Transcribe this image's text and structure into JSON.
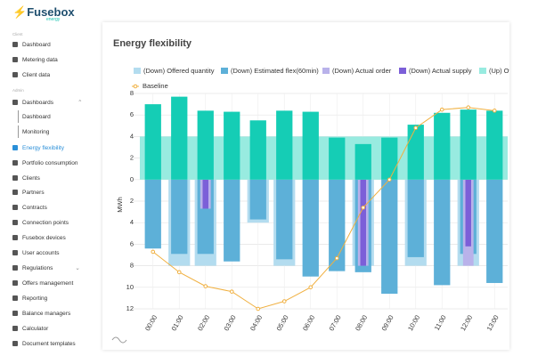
{
  "logo": {
    "name": "Fusebox",
    "sub": "energy"
  },
  "sidebar": {
    "section_labels": [
      "Client",
      "Admin"
    ],
    "items": [
      "Dashboard",
      "Metering data",
      "Client data",
      "Dashboards",
      "Dashboard",
      "Monitoring",
      "Energy flexibility",
      "Portfolio consumption",
      "Clients",
      "Partners",
      "Contracts",
      "Connection points",
      "Fusebox devices",
      "User accounts",
      "Regulations",
      "Offers management",
      "Reporting",
      "Balance managers",
      "Calculator",
      "Document templates"
    ]
  },
  "page": {
    "title": "Energy flexibility"
  },
  "chart_data": {
    "type": "bar",
    "categories": [
      "00:00",
      "01:00",
      "02:00",
      "03:00",
      "04:00",
      "05:00",
      "06:00",
      "07:00",
      "08:00",
      "09:00",
      "10:00",
      "11:00",
      "12:00",
      "13:00"
    ],
    "y_label": "MWh",
    "ylim": [
      -12,
      8
    ],
    "yticks": [
      8,
      6,
      4,
      2,
      0,
      {
        "value": -2,
        "label": "2"
      },
      {
        "value": -4,
        "label": "4"
      },
      {
        "value": -6,
        "label": "6"
      },
      {
        "value": -8,
        "label": "8"
      },
      {
        "value": -10,
        "label": "10"
      },
      {
        "value": -12,
        "label": "12"
      }
    ],
    "grid": true,
    "series": [
      {
        "name": "(Down) Offered quantity",
        "type": "bar",
        "color": "#b3dcef",
        "values": [
          null,
          -8,
          -8,
          null,
          -4,
          -8,
          null,
          null,
          -8,
          null,
          -8,
          null,
          -8,
          null
        ]
      },
      {
        "name": "(Down) Estimated flex(60min)",
        "type": "bar",
        "color": "#5db0d8",
        "values": [
          -6.4,
          -6.9,
          -6.9,
          -7.6,
          -3.7,
          -7.4,
          -9,
          -8.5,
          -8.6,
          -10.6,
          -7.2,
          -9.8,
          -6.9,
          -9.6
        ]
      },
      {
        "name": "(Down) Actual order",
        "type": "bar",
        "color": "#b9b2ea",
        "values": [
          null,
          null,
          -2.7,
          null,
          null,
          null,
          null,
          null,
          -8,
          null,
          null,
          null,
          -8,
          null
        ]
      },
      {
        "name": "(Down) Actual supply",
        "type": "bar",
        "color": "#7c5fd8",
        "values": [
          null,
          null,
          -2.7,
          null,
          null,
          null,
          null,
          null,
          -8,
          null,
          null,
          null,
          -6.2,
          null
        ]
      },
      {
        "name": "(Up) Offered quantity",
        "type": "band",
        "color": "#98ebe0",
        "values": [
          4,
          4,
          4,
          4,
          4,
          4,
          4,
          4,
          4,
          4,
          4,
          4,
          4,
          4
        ]
      },
      {
        "type": "bar",
        "color": "#15cdb5",
        "values": [
          7,
          7.7,
          6.4,
          6.3,
          5.5,
          6.4,
          6.3,
          3.9,
          3.3,
          3.9,
          5.1,
          6.2,
          6.5,
          6.4
        ]
      },
      {
        "name": "Baseline",
        "type": "line",
        "color": "#f0b040",
        "values": [
          -6.7,
          -8.6,
          -9.9,
          -10.4,
          -12,
          -11.3,
          -10,
          -7.3,
          -2.6,
          0,
          4.8,
          6.5,
          6.7,
          6.4
        ]
      }
    ]
  }
}
